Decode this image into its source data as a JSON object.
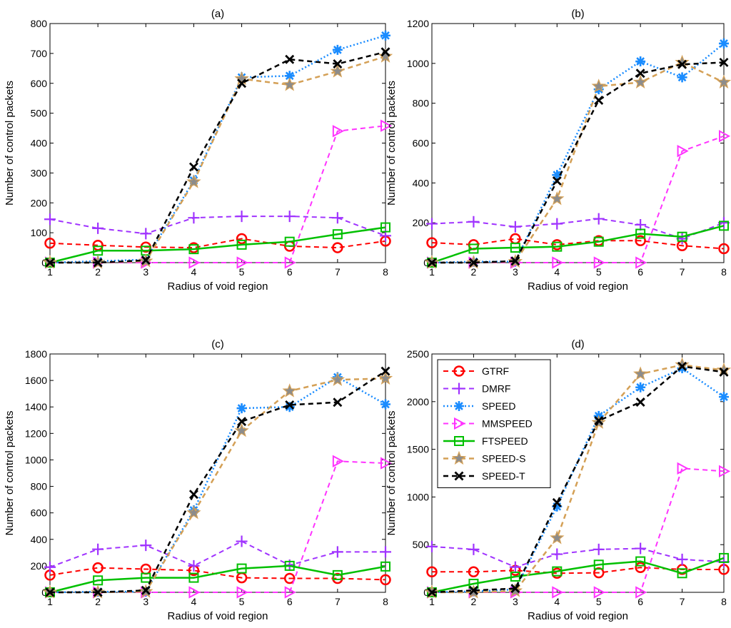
{
  "series_styles": [
    {
      "name": "GTRF",
      "color": "#ff0000",
      "dash": "7,5",
      "width": 2,
      "marker": "circle"
    },
    {
      "name": "DMRF",
      "color": "#a033ff",
      "dash": "7,5",
      "width": 2,
      "marker": "plus"
    },
    {
      "name": "SPEED",
      "color": "#1a8cff",
      "dash": "2,3",
      "width": 2.5,
      "marker": "asterisk"
    },
    {
      "name": "MMSPEED",
      "color": "#ff33ff",
      "dash": "7,5",
      "width": 2,
      "marker": "triangle-right"
    },
    {
      "name": "FTSPEED",
      "color": "#00c000",
      "dash": "",
      "width": 2.5,
      "marker": "square"
    },
    {
      "name": "SPEED-S",
      "color": "#d4a056",
      "dash": "7,5",
      "width": 2.5,
      "marker": "star"
    },
    {
      "name": "SPEED-T",
      "color": "#000000",
      "dash": "7,5",
      "width": 2.5,
      "marker": "x"
    }
  ],
  "chart_data": [
    {
      "type": "line",
      "title": "(a)",
      "xlabel": "Radius of void region",
      "ylabel": "Number of control packets",
      "x": [
        1,
        2,
        3,
        4,
        5,
        6,
        7,
        8
      ],
      "xticks": [
        "1",
        "2",
        "3",
        "4",
        "5",
        "6",
        "7",
        "8"
      ],
      "ylim": [
        0,
        800
      ],
      "yticks": [
        0,
        100,
        200,
        300,
        400,
        500,
        600,
        700,
        800
      ],
      "ytick_labels": [
        "0",
        "100",
        "200",
        "300",
        "400",
        "500",
        "600",
        "700",
        "800"
      ],
      "legend": null,
      "series": [
        {
          "name": "GTRF",
          "values": [
            65,
            58,
            52,
            50,
            80,
            55,
            50,
            72
          ]
        },
        {
          "name": "DMRF",
          "values": [
            145,
            115,
            97,
            150,
            155,
            155,
            150,
            90
          ]
        },
        {
          "name": "SPEED",
          "values": [
            0,
            5,
            10,
            275,
            620,
            625,
            712,
            760
          ]
        },
        {
          "name": "MMSPEED",
          "values": [
            0,
            0,
            0,
            0,
            0,
            0,
            440,
            458
          ]
        },
        {
          "name": "FTSPEED",
          "values": [
            0,
            40,
            40,
            45,
            60,
            70,
            95,
            118
          ]
        },
        {
          "name": "SPEED-S",
          "values": [
            0,
            0,
            5,
            270,
            615,
            595,
            640,
            690
          ]
        },
        {
          "name": "SPEED-T",
          "values": [
            0,
            0,
            8,
            320,
            600,
            680,
            665,
            705
          ]
        }
      ]
    },
    {
      "type": "line",
      "title": "(b)",
      "xlabel": "Radius of void region",
      "ylabel": "Number of control packets",
      "x": [
        1,
        2,
        3,
        4,
        5,
        6,
        7,
        8
      ],
      "xticks": [
        "1",
        "2",
        "3",
        "4",
        "5",
        "6",
        "7",
        "8"
      ],
      "ylim": [
        0,
        1200
      ],
      "yticks": [
        0,
        200,
        400,
        600,
        800,
        1000,
        1200
      ],
      "ytick_labels": [
        "0",
        "200",
        "400",
        "600",
        "800",
        "1000",
        "1200"
      ],
      "legend": null,
      "series": [
        {
          "name": "GTRF",
          "values": [
            100,
            90,
            120,
            90,
            110,
            110,
            85,
            70
          ]
        },
        {
          "name": "DMRF",
          "values": [
            195,
            205,
            180,
            195,
            220,
            190,
            120,
            200
          ]
        },
        {
          "name": "SPEED",
          "values": [
            0,
            5,
            5,
            440,
            870,
            1010,
            930,
            1100
          ]
        },
        {
          "name": "MMSPEED",
          "values": [
            0,
            0,
            0,
            0,
            0,
            0,
            560,
            635
          ]
        },
        {
          "name": "FTSPEED",
          "values": [
            0,
            70,
            75,
            80,
            105,
            145,
            130,
            185
          ]
        },
        {
          "name": "SPEED-S",
          "values": [
            0,
            0,
            5,
            320,
            885,
            905,
            1005,
            905
          ]
        },
        {
          "name": "SPEED-T",
          "values": [
            0,
            0,
            8,
            410,
            815,
            950,
            995,
            1005
          ]
        }
      ]
    },
    {
      "type": "line",
      "title": "(c)",
      "xlabel": "Radius of void region",
      "ylabel": "Number of control packets",
      "x": [
        1,
        2,
        3,
        4,
        5,
        6,
        7,
        8
      ],
      "xticks": [
        "1",
        "2",
        "3",
        "4",
        "5",
        "6",
        "7",
        "8"
      ],
      "ylim": [
        0,
        1800
      ],
      "yticks": [
        0,
        200,
        400,
        600,
        800,
        1000,
        1200,
        1400,
        1600,
        1800
      ],
      "ytick_labels": [
        "0",
        "200",
        "400",
        "600",
        "800",
        "1000",
        "1200",
        "1400",
        "1600",
        "1800"
      ],
      "legend": null,
      "series": [
        {
          "name": "GTRF",
          "values": [
            130,
            185,
            175,
            165,
            110,
            105,
            105,
            95
          ]
        },
        {
          "name": "DMRF",
          "values": [
            190,
            325,
            355,
            200,
            385,
            205,
            305,
            305
          ]
        },
        {
          "name": "SPEED",
          "values": [
            0,
            5,
            5,
            620,
            1390,
            1400,
            1625,
            1420
          ]
        },
        {
          "name": "MMSPEED",
          "values": [
            0,
            0,
            0,
            0,
            0,
            0,
            990,
            975
          ]
        },
        {
          "name": "FTSPEED",
          "values": [
            0,
            90,
            110,
            110,
            180,
            200,
            130,
            195
          ]
        },
        {
          "name": "SPEED-S",
          "values": [
            0,
            0,
            5,
            600,
            1220,
            1520,
            1605,
            1615
          ]
        },
        {
          "name": "SPEED-T",
          "values": [
            0,
            0,
            15,
            740,
            1290,
            1415,
            1435,
            1670
          ]
        }
      ]
    },
    {
      "type": "line",
      "title": "(d)",
      "xlabel": "Radius of void region",
      "ylabel": "Number of control packets",
      "x": [
        1,
        2,
        3,
        4,
        5,
        6,
        7,
        8
      ],
      "xticks": [
        "1",
        "2",
        "3",
        "4",
        "5",
        "6",
        "7",
        "8"
      ],
      "ylim": [
        0,
        2500
      ],
      "yticks": [
        0,
        500,
        1000,
        1500,
        2000,
        2500
      ],
      "ytick_labels": [
        "0",
        "500",
        "1000",
        "1500",
        "2000",
        "2500"
      ],
      "legend": "top-left",
      "series": [
        {
          "name": "GTRF",
          "values": [
            215,
            215,
            230,
            200,
            205,
            260,
            240,
            240
          ]
        },
        {
          "name": "DMRF",
          "values": [
            480,
            450,
            265,
            400,
            450,
            460,
            345,
            320
          ]
        },
        {
          "name": "SPEED",
          "values": [
            0,
            10,
            30,
            900,
            1850,
            2150,
            2350,
            2050
          ]
        },
        {
          "name": "MMSPEED",
          "values": [
            0,
            0,
            0,
            0,
            0,
            0,
            1300,
            1270
          ]
        },
        {
          "name": "FTSPEED",
          "values": [
            0,
            90,
            165,
            220,
            290,
            325,
            200,
            360
          ]
        },
        {
          "name": "SPEED-S",
          "values": [
            0,
            0,
            15,
            570,
            1780,
            2290,
            2385,
            2330
          ]
        },
        {
          "name": "SPEED-T",
          "values": [
            0,
            20,
            40,
            940,
            1800,
            1995,
            2370,
            2310
          ]
        }
      ]
    }
  ]
}
